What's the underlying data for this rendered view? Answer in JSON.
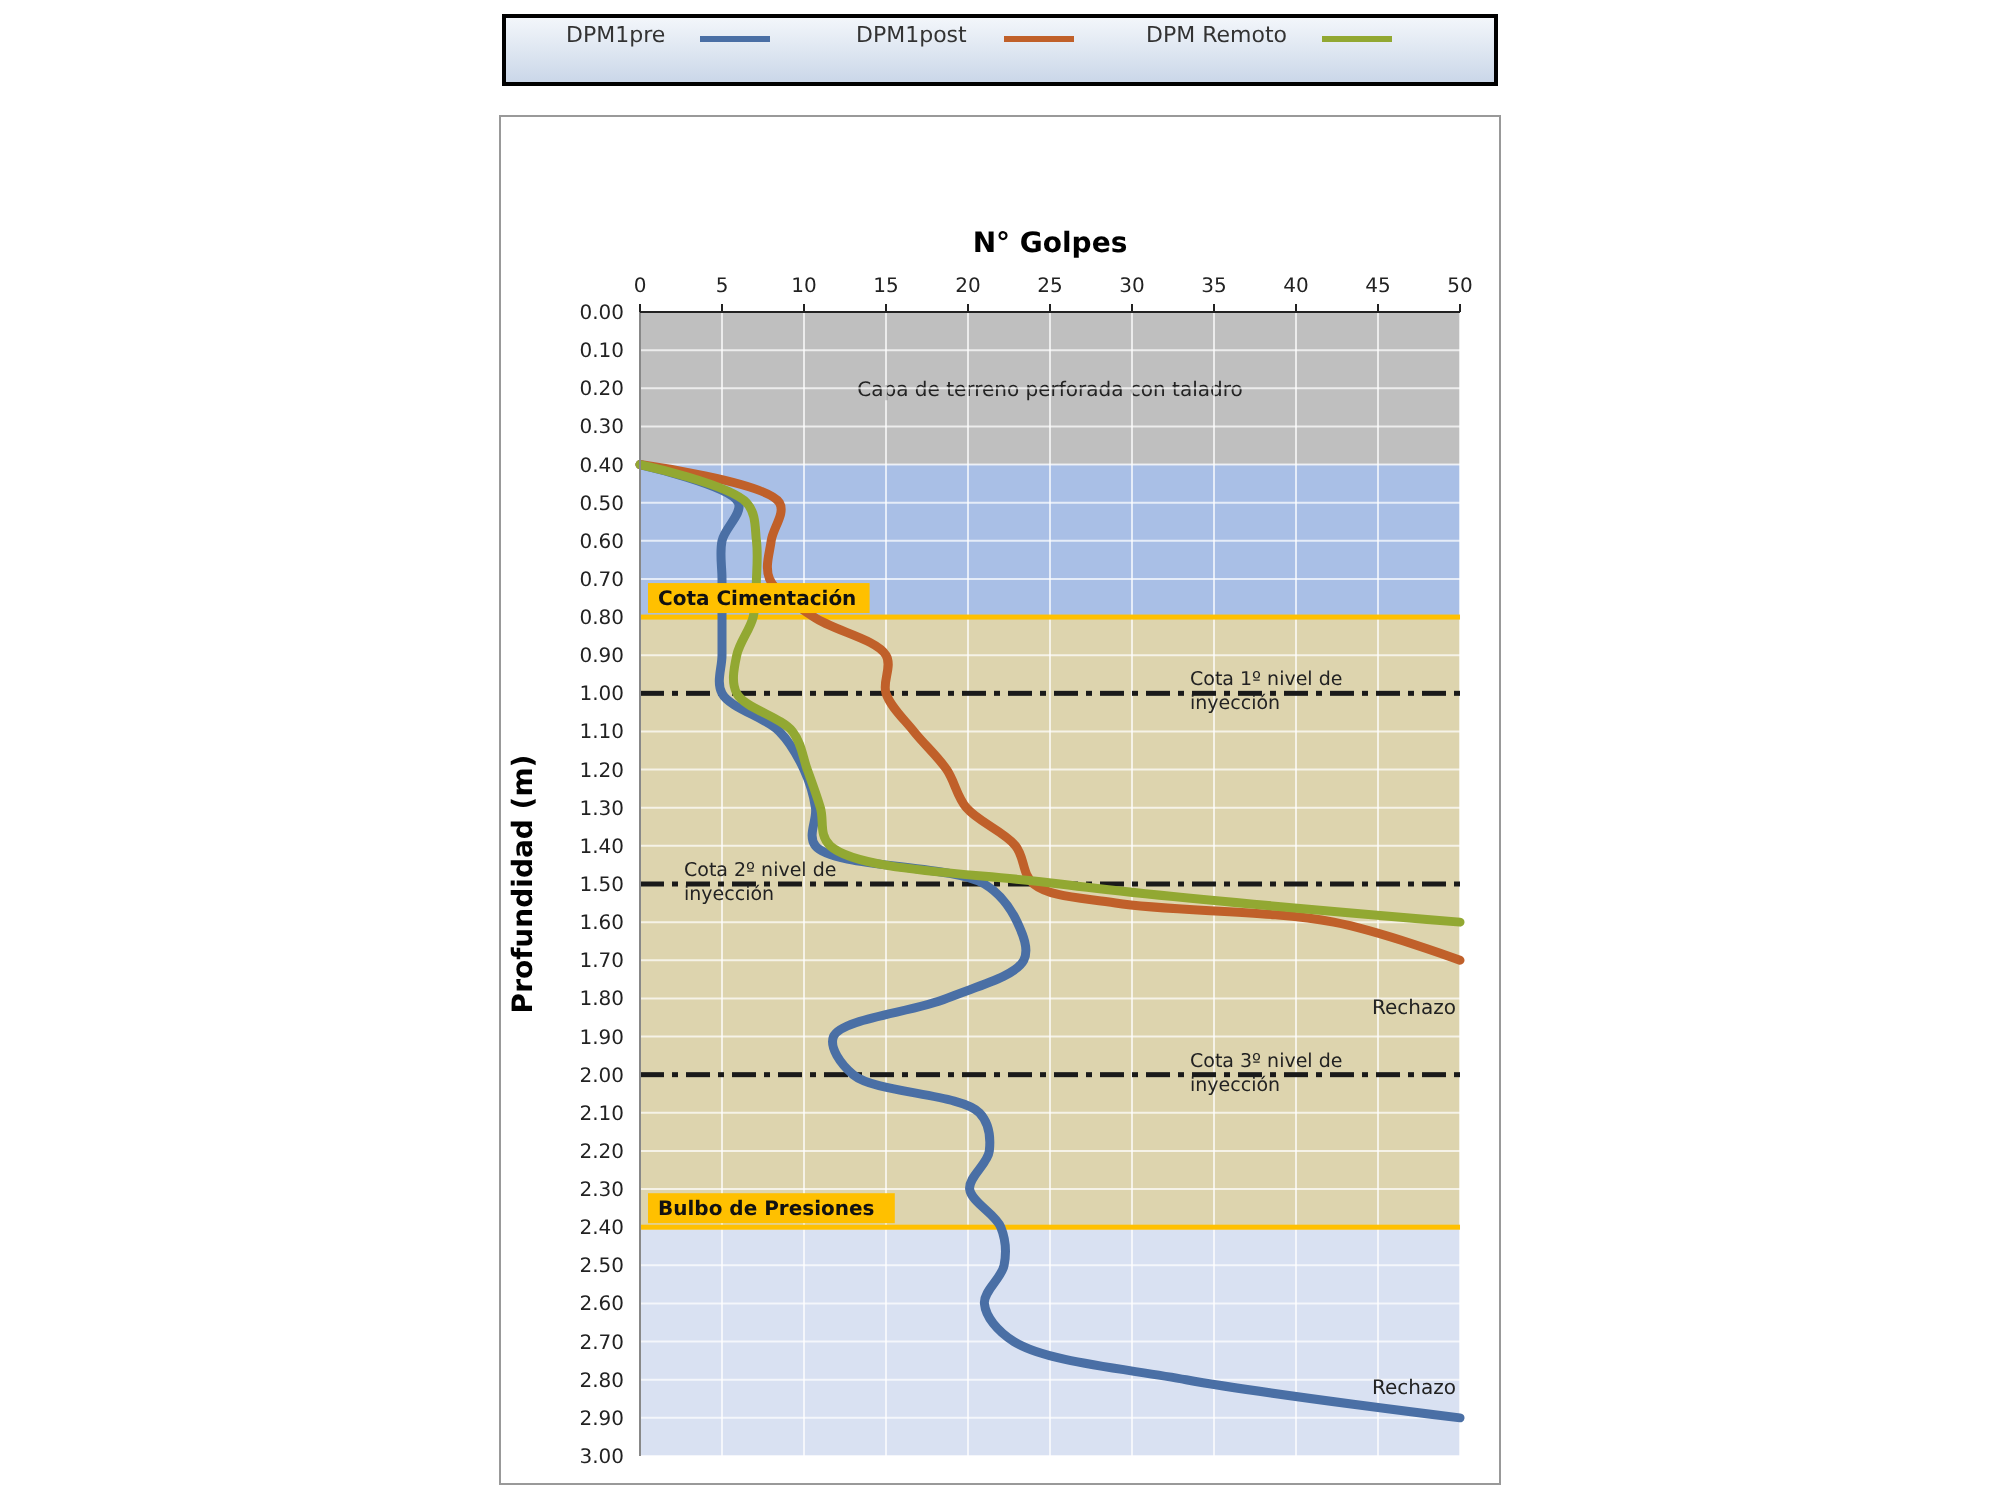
{
  "chart_data": {
    "type": "line",
    "xlabel": "N° Golpes",
    "ylabel": "Profundidad  (m)",
    "xlim": [
      0,
      50
    ],
    "xticks": [
      0,
      5,
      10,
      15,
      20,
      25,
      30,
      35,
      40,
      45,
      50
    ],
    "ylim": [
      3,
      0
    ],
    "yticks": [
      {
        "value": 0,
        "label": "0.00"
      },
      {
        "value": 0.1,
        "label": "0.10"
      },
      {
        "value": 0.2,
        "label": "0.20"
      },
      {
        "value": 0.3,
        "label": "0.30"
      },
      {
        "value": 0.4,
        "label": "0.40"
      },
      {
        "value": 0.5,
        "label": "0.50"
      },
      {
        "value": 0.6,
        "label": "0.60"
      },
      {
        "value": 0.7,
        "label": "0.70"
      },
      {
        "value": 0.8,
        "label": "0.80"
      },
      {
        "value": 0.9,
        "label": "0.90"
      },
      {
        "value": 1,
        "label": "1.00"
      },
      {
        "value": 1.1,
        "label": "1.10"
      },
      {
        "value": 1.2,
        "label": "1.20"
      },
      {
        "value": 1.3,
        "label": "1.30"
      },
      {
        "value": 1.4,
        "label": "1.40"
      },
      {
        "value": 1.5,
        "label": "1.50"
      },
      {
        "value": 1.6,
        "label": "1.60"
      },
      {
        "value": 1.7,
        "label": "1.70"
      },
      {
        "value": 1.8,
        "label": "1.80"
      },
      {
        "value": 1.9,
        "label": "1.90"
      },
      {
        "value": 2,
        "label": "2.00"
      },
      {
        "value": 2.1,
        "label": "2.10"
      },
      {
        "value": 2.2,
        "label": "2.20"
      },
      {
        "value": 2.3,
        "label": "2.30"
      },
      {
        "value": 2.4,
        "label": "2.40"
      },
      {
        "value": 2.5,
        "label": "2.50"
      },
      {
        "value": 2.6,
        "label": "2.60"
      },
      {
        "value": 2.7,
        "label": "2.70"
      },
      {
        "value": 2.8,
        "label": "2.80"
      },
      {
        "value": 2.9,
        "label": "2.90"
      },
      {
        "value": 3,
        "label": "3.00"
      }
    ],
    "grid": true,
    "legend": "top",
    "marker": "none",
    "line_style": "solid",
    "series": [
      {
        "name": "DPM1pre",
        "color": "#4a6fa5",
        "x": [
          0,
          6,
          5,
          5,
          5,
          5,
          5,
          8.5,
          10,
          10.7,
          10.7,
          21,
          23,
          23.4,
          18.7,
          11.8,
          13,
          20.7,
          21.3,
          20.1,
          22,
          22.2,
          21,
          22.8,
          33.3,
          50
        ],
        "values": [
          0.4,
          0.5,
          0.6,
          0.7,
          0.8,
          0.9,
          1,
          1.1,
          1.2,
          1.3,
          1.4,
          1.5,
          1.6,
          1.7,
          1.8,
          1.9,
          2,
          2.1,
          2.2,
          2.3,
          2.4,
          2.5,
          2.6,
          2.7,
          2.8,
          2.9
        ]
      },
      {
        "name": "DPM1post",
        "color": "#c0602a",
        "x": [
          0,
          8.5,
          8,
          7.9,
          10.6,
          15,
          15,
          16.7,
          18.7,
          19.9,
          22.9,
          24,
          29,
          42.3,
          50
        ],
        "values": [
          0.4,
          0.5,
          0.6,
          0.7,
          0.8,
          0.9,
          1,
          1.1,
          1.2,
          1.3,
          1.4,
          1.5,
          1.55,
          1.6,
          1.7
        ]
      },
      {
        "name": "DPM Remoto",
        "color": "#92a832",
        "x": [
          0,
          6.5,
          7.1,
          7.1,
          6.9,
          5.9,
          5.9,
          9.3,
          10.2,
          11,
          11.6,
          25.6,
          50
        ],
        "values": [
          0.4,
          0.5,
          0.6,
          0.7,
          0.8,
          0.9,
          1,
          1.1,
          1.2,
          1.3,
          1.4,
          1.5,
          1.6
        ]
      }
    ],
    "bands": [
      {
        "axis": "y",
        "from": 0,
        "to": 0.4,
        "label": "Capa de terreno perforada con taladro",
        "color": "#bfbfbf"
      },
      {
        "axis": "y",
        "from": 0.4,
        "to": 0.8,
        "color": "#a9bfe6"
      },
      {
        "axis": "y",
        "from": 0.8,
        "to": 2.4,
        "color": "#ddd4ae"
      },
      {
        "axis": "y",
        "from": 2.4,
        "to": 3,
        "color": "#d9e1f2"
      }
    ],
    "ref_lines": [
      {
        "axis": "y",
        "value": 0.8,
        "label": "Cota Cimentación",
        "color": "#ffc000",
        "line_style": "solid"
      },
      {
        "axis": "y",
        "value": 1,
        "label": "Cota 1º nivel de inyección",
        "color": "#1a1a1a",
        "line_style": "dashed"
      },
      {
        "axis": "y",
        "value": 1.5,
        "label": "Cota 2º nivel de inyección",
        "color": "#1a1a1a",
        "line_style": "dashed"
      },
      {
        "axis": "y",
        "value": 2,
        "label": "Cota 3º nivel de inyección",
        "color": "#1a1a1a",
        "line_style": "dashed"
      },
      {
        "axis": "y",
        "value": 2.4,
        "label": "Bulbo de Presiones",
        "color": "#ffc000",
        "line_style": "solid"
      }
    ],
    "annotations": [
      {
        "text": "Rechazo",
        "x": 50,
        "y": 1.7
      },
      {
        "text": "Rechazo",
        "x": 50,
        "y": 2.9
      }
    ]
  }
}
